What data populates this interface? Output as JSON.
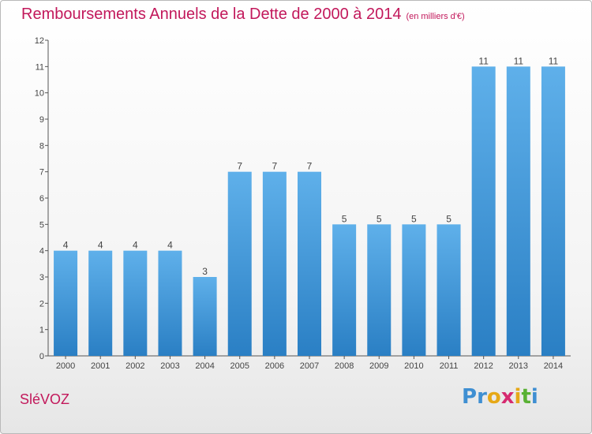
{
  "header": {
    "title": "Remboursements Annuels de la Dette de 2000 à 2014",
    "unit": "(en milliers d'€)"
  },
  "footer": {
    "commune": "SléVOZ",
    "logo_letters": [
      "P",
      "r",
      "o",
      "x",
      "i",
      "t",
      "i"
    ],
    "logo_colors": [
      "#3f8fd2",
      "#3f8fd2",
      "#e6a817",
      "#d62b70",
      "#e6a817",
      "#59b134",
      "#3f8fd2"
    ]
  },
  "colors": {
    "bar_light": "#5fb0ea",
    "bar_dark": "#2a7fc4",
    "title": "#c2185b"
  },
  "chart_data": {
    "type": "bar",
    "title": "Remboursements Annuels de la Dette de 2000 à 2014",
    "categories": [
      "2000",
      "2001",
      "2002",
      "2003",
      "2004",
      "2005",
      "2006",
      "2007",
      "2008",
      "2009",
      "2010",
      "2011",
      "2012",
      "2013",
      "2014"
    ],
    "values": [
      4,
      4,
      4,
      4,
      3,
      7,
      7,
      7,
      5,
      5,
      5,
      5,
      11,
      11,
      11
    ],
    "ylim": [
      0,
      12
    ],
    "yticks": [
      0,
      1,
      2,
      3,
      4,
      5,
      6,
      7,
      8,
      9,
      10,
      11,
      12
    ],
    "grid": false,
    "xlabel": "",
    "ylabel": ""
  }
}
